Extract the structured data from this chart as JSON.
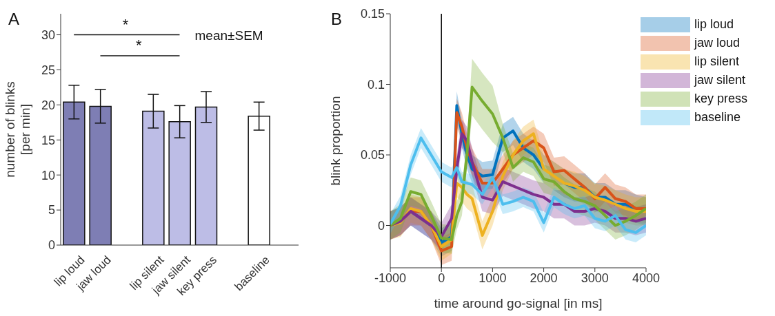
{
  "chart_data": [
    {
      "type": "bar",
      "categories": [
        "lip loud",
        "jaw loud",
        null,
        "lip silent",
        "jaw silent",
        "key press",
        null,
        "baseline",
        null
      ],
      "values": [
        20.4,
        19.8,
        null,
        19.1,
        17.6,
        19.7,
        null,
        18.4,
        null
      ],
      "errors": [
        2.4,
        2.4,
        null,
        2.4,
        2.3,
        2.2,
        null,
        2.0,
        null
      ],
      "colors": [
        "#7e7eb4",
        "#7e7eb4",
        null,
        "#bdbde6",
        "#bdbde6",
        "#bdbde6",
        null,
        "#ffffff",
        null
      ],
      "ylim": [
        0,
        33
      ],
      "yticks": [
        0,
        5,
        10,
        15,
        20,
        25,
        30
      ],
      "ylabel": "number of blinks\n[per min]",
      "annotations": [
        "A",
        "*",
        "*",
        "mean±SEM"
      ]
    },
    {
      "type": "line",
      "x": [
        -1000,
        -800,
        -600,
        -400,
        -200,
        0,
        200,
        300,
        400,
        500,
        600,
        800,
        1000,
        1200,
        1400,
        1600,
        1800,
        2000,
        2200,
        2400,
        2600,
        2800,
        3000,
        3200,
        3400,
        3600,
        3800,
        4000
      ],
      "series": [
        {
          "name": "lip loud",
          "color": "#0072bd",
          "values": [
            0,
            0.003,
            0.01,
            0.005,
            0,
            -0.012,
            -0.008,
            0.085,
            0.065,
            0.05,
            0.04,
            0.035,
            0.036,
            0.062,
            0.067,
            0.055,
            0.05,
            0.04,
            null,
            0.03,
            0.027,
            0.027,
            0.02,
            0.02,
            0.015,
            0.015,
            0.012,
            null
          ],
          "lower": [
            -0.01,
            -0.007,
            0,
            -0.005,
            -0.01,
            -0.022,
            -0.018,
            0.075,
            0.055,
            0.04,
            0.03,
            0.025,
            0.026,
            0.052,
            0.057,
            0.045,
            0.04,
            0.03,
            0.025,
            0.02,
            0.017,
            0.017,
            0.01,
            0.01,
            0.005,
            0.005,
            0.002,
            0
          ],
          "upper": [
            0.01,
            0.013,
            0.02,
            0.015,
            0.01,
            -0.002,
            0.002,
            0.095,
            0.075,
            0.06,
            0.05,
            0.045,
            0.046,
            0.072,
            0.077,
            0.065,
            0.06,
            0.05,
            0.045,
            0.04,
            0.037,
            0.037,
            0.03,
            0.03,
            0.025,
            0.025,
            0.022,
            0.02
          ]
        },
        {
          "name": "jaw loud",
          "color": "#d95319",
          "values": [
            0,
            0.003,
            0.01,
            0.01,
            0,
            -0.018,
            -0.015,
            0.08,
            0.07,
            0.055,
            0.045,
            0.03,
            0.03,
            0.04,
            0.05,
            0.055,
            0.06,
            0.055,
            0.038,
            0.039,
            0.033,
            0.027,
            0.019,
            0.027,
            0.019,
            0.017,
            0.012,
            0.012
          ],
          "lower": [
            -0.01,
            -0.007,
            0,
            0,
            -0.01,
            -0.028,
            -0.025,
            0.07,
            0.06,
            0.045,
            0.035,
            0.02,
            0.02,
            0.03,
            0.04,
            0.045,
            0.05,
            0.045,
            0.028,
            0.029,
            0.023,
            0.017,
            0.009,
            0.017,
            0.009,
            0.007,
            0.002,
            0.002
          ],
          "upper": [
            0.01,
            0.013,
            0.02,
            0.02,
            0.01,
            -0.008,
            -0.005,
            0.09,
            0.08,
            0.065,
            0.055,
            0.04,
            0.04,
            0.05,
            0.06,
            0.065,
            0.07,
            0.065,
            0.048,
            0.049,
            0.043,
            0.037,
            0.029,
            0.037,
            0.029,
            0.027,
            0.022,
            0.022
          ]
        },
        {
          "name": "lip silent",
          "color": "#edb120",
          "values": [
            0,
            0.002,
            0.012,
            0.01,
            0,
            -0.015,
            -0.01,
            0.03,
            0.027,
            0.022,
            0.019,
            -0.007,
            0.01,
            0.035,
            0.05,
            0.06,
            0.065,
            0.04,
            0.035,
            0.03,
            0.028,
            0.025,
            0.02,
            0.018,
            0.015,
            0.012,
            0.01,
            0.01
          ],
          "lower": [
            -0.01,
            -0.008,
            0.002,
            0,
            -0.01,
            -0.025,
            -0.02,
            0.02,
            0.017,
            0.012,
            0.009,
            -0.017,
            0,
            0.025,
            0.04,
            0.05,
            0.055,
            0.03,
            0.025,
            0.02,
            0.018,
            0.015,
            0.01,
            0.008,
            0.005,
            0.002,
            0,
            0
          ],
          "upper": [
            0.01,
            0.012,
            0.022,
            0.02,
            0.01,
            -0.005,
            0,
            0.04,
            0.037,
            0.032,
            0.029,
            0.003,
            0.02,
            0.045,
            0.06,
            0.07,
            0.075,
            0.05,
            0.045,
            0.04,
            0.038,
            0.035,
            0.03,
            0.028,
            0.025,
            0.022,
            0.02,
            0.02
          ]
        },
        {
          "name": "jaw silent",
          "color": "#7e2f8e",
          "values": [
            0,
            0.003,
            0.01,
            0.005,
            0,
            -0.008,
            0.005,
            0.04,
            0.065,
            0.06,
            0.045,
            0.02,
            0.018,
            0.031,
            0.028,
            0.025,
            0.022,
            0.02,
            0.015,
            0.015,
            0.01,
            0.01,
            0.012,
            0.01,
            0.005,
            0.005,
            0.003,
            0.005
          ],
          "lower": [
            -0.01,
            -0.007,
            0,
            -0.005,
            -0.01,
            -0.018,
            -0.005,
            0.03,
            0.055,
            0.05,
            0.035,
            0.01,
            0.008,
            0.021,
            0.018,
            0.015,
            0.012,
            0.01,
            0.005,
            0.005,
            0,
            0,
            0.002,
            0,
            -0.005,
            -0.005,
            -0.007,
            -0.005
          ],
          "upper": [
            0.01,
            0.013,
            0.02,
            0.015,
            0.01,
            0.002,
            0.015,
            0.05,
            0.075,
            0.07,
            0.055,
            0.03,
            0.028,
            0.041,
            0.038,
            0.035,
            0.032,
            0.03,
            0.025,
            0.025,
            0.02,
            0.02,
            0.022,
            0.02,
            0.015,
            0.015,
            0.013,
            0.015
          ]
        },
        {
          "name": "key press",
          "color": "#77ac30",
          "values": [
            0,
            0.005,
            0.024,
            0.022,
            0.007,
            -0.009,
            -0.01,
            0.007,
            0.017,
            0.051,
            0.098,
            0.088,
            0.079,
            0.062,
            0.041,
            0.048,
            0.045,
            0.033,
            0.031,
            0.024,
            0.019,
            0.017,
            0.014,
            0.007,
            0,
            0.003,
            0.007,
            0.012
          ],
          "lower": [
            -0.01,
            -0.005,
            0.014,
            0.012,
            -0.003,
            -0.019,
            -0.02,
            -0.003,
            0.007,
            0.041,
            0.078,
            0.068,
            0.059,
            0.052,
            0.031,
            0.038,
            0.035,
            0.023,
            0.021,
            0.014,
            0.009,
            0.007,
            0.004,
            -0.003,
            -0.01,
            -0.007,
            -0.003,
            0.002
          ],
          "upper": [
            0.01,
            0.015,
            0.034,
            0.032,
            0.017,
            0.001,
            0,
            0.017,
            0.027,
            0.061,
            0.118,
            0.108,
            0.099,
            0.072,
            0.051,
            0.058,
            0.055,
            0.043,
            0.041,
            0.034,
            0.029,
            0.027,
            0.024,
            0.017,
            0.01,
            0.013,
            0.017,
            0.022
          ]
        },
        {
          "name": "baseline",
          "color": "#4dbeee",
          "values": [
            0.001,
            0.014,
            0.043,
            0.062,
            0.05,
            0.038,
            0.034,
            0.041,
            0.031,
            0.03,
            0.029,
            0.022,
            0.034,
            0.015,
            0.017,
            0.02,
            0.017,
            0.002,
            0.02,
            0.015,
            0.012,
            0.014,
            0.005,
            0.003,
            0.007,
            -0.003,
            -0.005,
            0
          ],
          "lower": [
            -0.006,
            0.007,
            0.036,
            0.055,
            0.043,
            0.031,
            0.027,
            0.034,
            0.024,
            0.023,
            0.022,
            0.015,
            0.027,
            0.008,
            0.01,
            0.013,
            0.01,
            -0.005,
            0.013,
            0.008,
            0.005,
            0.007,
            -0.002,
            -0.004,
            0,
            -0.01,
            -0.012,
            -0.007
          ],
          "upper": [
            0.008,
            0.021,
            0.05,
            0.069,
            0.057,
            0.045,
            0.041,
            0.048,
            0.038,
            0.037,
            0.036,
            0.029,
            0.041,
            0.022,
            0.024,
            0.027,
            0.024,
            0.009,
            0.027,
            0.022,
            0.019,
            0.021,
            0.012,
            0.01,
            0.014,
            0.004,
            0.002,
            0.007
          ]
        }
      ],
      "xlim": [
        -1000,
        4000
      ],
      "xticks": [
        -1000,
        0,
        1000,
        2000,
        3000,
        4000
      ],
      "ylim": [
        -0.03,
        0.15
      ],
      "yticks": [
        0,
        0.05,
        0.1,
        0.15
      ],
      "xlabel": "time around go-signal [in ms]",
      "ylabel": "blink proportion",
      "legend": "top right",
      "ref_lines": [
        {
          "axis": "x",
          "value": 0,
          "color": "#000000"
        }
      ],
      "annotations": [
        "B"
      ]
    }
  ]
}
